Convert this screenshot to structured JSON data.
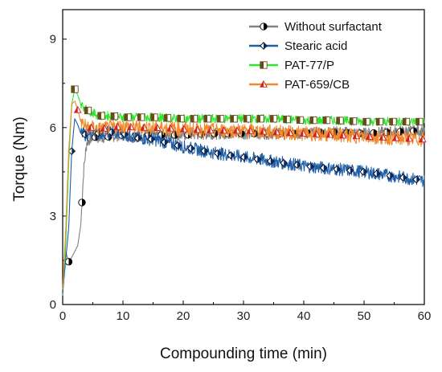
{
  "chart_data": {
    "type": "line",
    "title": "",
    "xlabel": "Compounding time (min)",
    "ylabel": "Torque (Nm)",
    "xlim": [
      0,
      60
    ],
    "ylim": [
      0,
      10
    ],
    "xticks": [
      "0",
      "10",
      "20",
      "30",
      "40",
      "50",
      "60"
    ],
    "yticks": [
      "0",
      "3",
      "6",
      "9"
    ],
    "grid": false,
    "legend_position": "top-right",
    "series": [
      {
        "name": "Without surfactant",
        "color": "#808080",
        "marker": "half-filled-circle",
        "points": [
          [
            0,
            0.3
          ],
          [
            0.5,
            1.8
          ],
          [
            1,
            1.45
          ],
          [
            1.5,
            1.6
          ],
          [
            2,
            1.8
          ],
          [
            2.5,
            2.0
          ],
          [
            3,
            2.7
          ],
          [
            3.5,
            4.6
          ],
          [
            4,
            5.5
          ],
          [
            5,
            5.7
          ],
          [
            6,
            5.65
          ],
          [
            8,
            5.7
          ],
          [
            10,
            5.75
          ],
          [
            12,
            5.7
          ],
          [
            15,
            5.75
          ],
          [
            20,
            5.75
          ],
          [
            25,
            5.8
          ],
          [
            30,
            5.8
          ],
          [
            35,
            5.8
          ],
          [
            40,
            5.8
          ],
          [
            45,
            5.85
          ],
          [
            50,
            5.8
          ],
          [
            55,
            5.85
          ],
          [
            60,
            5.9
          ]
        ],
        "noise": 0.2
      },
      {
        "name": "Stearic acid",
        "color": "#1f5fa8",
        "marker": "half-filled-diamond",
        "points": [
          [
            0,
            0.4
          ],
          [
            0.5,
            1.5
          ],
          [
            1,
            2.6
          ],
          [
            1.5,
            5.2
          ],
          [
            2,
            6.3
          ],
          [
            2.5,
            6.1
          ],
          [
            3,
            5.8
          ],
          [
            4,
            5.75
          ],
          [
            5,
            5.9
          ],
          [
            6,
            5.8
          ],
          [
            8,
            5.85
          ],
          [
            10,
            5.8
          ],
          [
            12,
            5.65
          ],
          [
            15,
            5.6
          ],
          [
            20,
            5.35
          ],
          [
            25,
            5.15
          ],
          [
            30,
            5.0
          ],
          [
            35,
            4.85
          ],
          [
            40,
            4.7
          ],
          [
            45,
            4.6
          ],
          [
            50,
            4.5
          ],
          [
            55,
            4.35
          ],
          [
            60,
            4.2
          ]
        ],
        "noise": 0.22
      },
      {
        "name": "PAT-77/P",
        "color": "#2ee62e",
        "marker": "half-filled-square",
        "points": [
          [
            0,
            0.5
          ],
          [
            0.5,
            2.0
          ],
          [
            1,
            4.8
          ],
          [
            1.5,
            6.8
          ],
          [
            2,
            7.3
          ],
          [
            2.5,
            7.1
          ],
          [
            3,
            6.8
          ],
          [
            4,
            6.6
          ],
          [
            5,
            6.5
          ],
          [
            6,
            6.4
          ],
          [
            8,
            6.4
          ],
          [
            10,
            6.35
          ],
          [
            15,
            6.35
          ],
          [
            20,
            6.3
          ],
          [
            25,
            6.3
          ],
          [
            30,
            6.3
          ],
          [
            35,
            6.3
          ],
          [
            40,
            6.25
          ],
          [
            45,
            6.25
          ],
          [
            50,
            6.2
          ],
          [
            55,
            6.2
          ],
          [
            60,
            6.2
          ]
        ],
        "noise": 0.15
      },
      {
        "name": "PAT-659/CB",
        "color": "#f08a2c",
        "marker": "half-filled-triangle",
        "points": [
          [
            0,
            0.5
          ],
          [
            0.5,
            2.5
          ],
          [
            1,
            5.2
          ],
          [
            1.5,
            6.8
          ],
          [
            2,
            6.9
          ],
          [
            2.5,
            6.6
          ],
          [
            3,
            6.2
          ],
          [
            4,
            6.0
          ],
          [
            5,
            6.0
          ],
          [
            6,
            5.95
          ],
          [
            8,
            6.0
          ],
          [
            10,
            6.05
          ],
          [
            12,
            6.0
          ],
          [
            15,
            6.0
          ],
          [
            20,
            5.95
          ],
          [
            25,
            5.9
          ],
          [
            30,
            5.9
          ],
          [
            35,
            5.85
          ],
          [
            40,
            5.8
          ],
          [
            45,
            5.75
          ],
          [
            50,
            5.7
          ],
          [
            55,
            5.65
          ],
          [
            60,
            5.6
          ]
        ],
        "noise": 0.25
      }
    ]
  }
}
